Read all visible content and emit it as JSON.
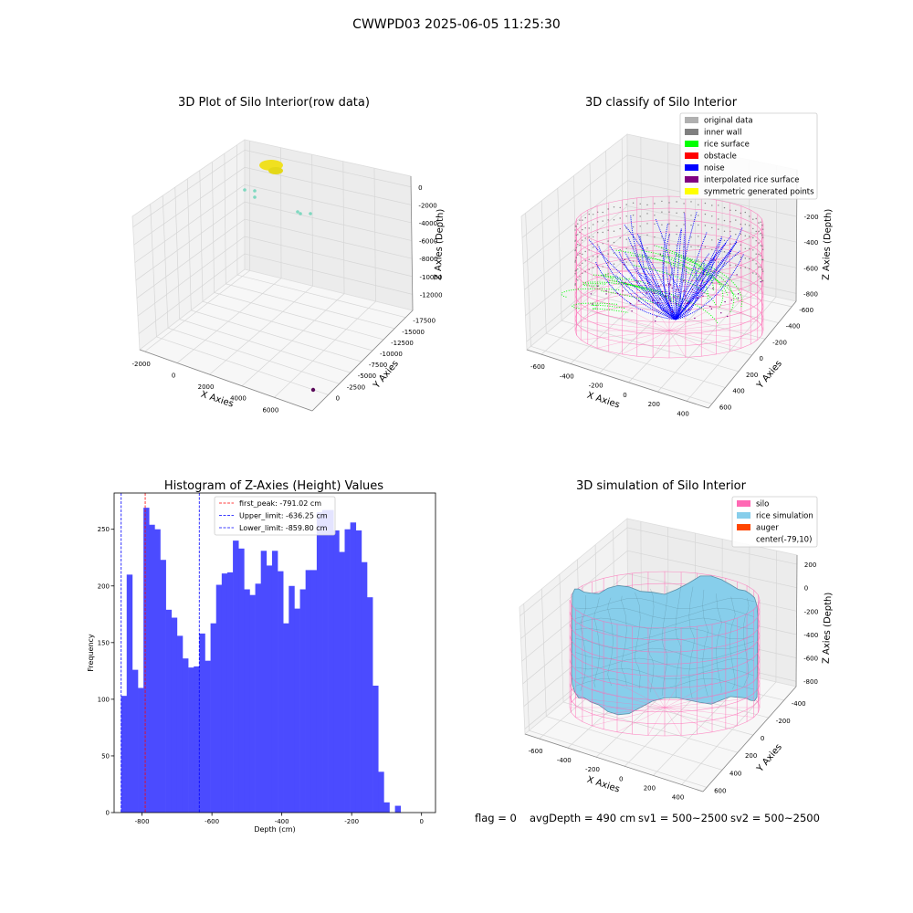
{
  "figure_title": "CWWPD03 2025-06-05 11:25:30",
  "footer": {
    "flag": "flag = 0",
    "avg_depth": "avgDepth = 490 cm",
    "sv1": "sv1 = 500~2500",
    "sv2": "sv2 = 500~2500"
  },
  "colors": {
    "raw_points": "#7fd8c0",
    "raw_cluster": "#f0e020",
    "raw_outlier": "#5a0a5a",
    "hist_bar": "#4b4bff",
    "peak_line": "#ff0000",
    "limit_line": "#0000ff",
    "silo": "#ff69b4",
    "rice": "#87ceeb",
    "auger": "#ff4500"
  },
  "chart_data": [
    {
      "type": "scatter",
      "title": "3D Plot of Silo Interior(row data)",
      "xlabel": "X Axies",
      "ylabel": "Y Axies",
      "zlabel": "Z Axies (Depth)",
      "x_ticks": [
        "-2000",
        "0",
        "2000",
        "4000",
        "6000"
      ],
      "y_ticks": [
        "0",
        "-2500",
        "-5000",
        "-7500",
        "-10000",
        "-12500",
        "-15000",
        "-17500"
      ],
      "z_ticks": [
        "0",
        "-2000",
        "-4000",
        "-6000",
        "-8000",
        "-10000",
        "-12000"
      ]
    },
    {
      "type": "scatter",
      "title": "3D classify of Silo Interior",
      "xlabel": "X Axies",
      "ylabel": "Y Axies",
      "zlabel": "Z Axies (Depth)",
      "x_ticks": [
        "-600",
        "-400",
        "-200",
        "0",
        "200",
        "400"
      ],
      "y_ticks": [
        "600",
        "400",
        "200",
        "0",
        "-200",
        "-400",
        "-600"
      ],
      "z_ticks": [
        "0",
        "-200",
        "-400",
        "-600",
        "-800"
      ],
      "legend": [
        {
          "label": "original data",
          "color": "#b0b0b0"
        },
        {
          "label": "inner wall",
          "color": "#808080"
        },
        {
          "label": "rice surface",
          "color": "#00ff00"
        },
        {
          "label": "obstacle",
          "color": "#ff0000"
        },
        {
          "label": "noise",
          "color": "#0000ff"
        },
        {
          "label": "interpolated rice surface",
          "color": "#800080"
        },
        {
          "label": "symmetric generated points",
          "color": "#ffff00"
        }
      ]
    },
    {
      "type": "bar",
      "title": "Histogram of Z-Axies (Height) Values",
      "xlabel": "Depth (cm)",
      "ylabel": "Frequency",
      "xlim": [
        -880,
        40
      ],
      "ylim": [
        0,
        282
      ],
      "x_ticks": [
        -800,
        -600,
        -400,
        -200,
        0
      ],
      "y_ticks": [
        0,
        50,
        100,
        150,
        200,
        250
      ],
      "bin_start": -860,
      "bin_width": 16,
      "values": [
        103,
        210,
        126,
        110,
        269,
        254,
        250,
        223,
        179,
        172,
        156,
        136,
        128,
        129,
        158,
        134,
        167,
        201,
        211,
        212,
        240,
        233,
        197,
        192,
        202,
        231,
        218,
        231,
        213,
        167,
        200,
        180,
        197,
        214,
        214,
        265,
        267,
        267,
        249,
        230,
        250,
        256,
        249,
        221,
        190,
        112,
        36,
        9,
        0,
        6
      ],
      "lines": [
        {
          "label": "first_peak: -791.02 cm",
          "x": -791.02,
          "style": "peak"
        },
        {
          "label": "Upper_limit: -636.25 cm",
          "x": -636.25,
          "style": "limit"
        },
        {
          "label": "Lower_limit: -859.80 cm",
          "x": -859.8,
          "style": "limit"
        }
      ]
    },
    {
      "type": "area",
      "title": "3D simulation of Silo Interior",
      "xlabel": "X Axies",
      "ylabel": "Y Axies",
      "zlabel": "Z Axies (Depth)",
      "x_ticks": [
        "-600",
        "-400",
        "-200",
        "0",
        "200",
        "400"
      ],
      "y_ticks": [
        "600",
        "400",
        "200",
        "0",
        "-200",
        "-400"
      ],
      "z_ticks": [
        "200",
        "0",
        "-200",
        "-400",
        "-600",
        "-800"
      ],
      "legend": [
        {
          "label": "silo",
          "color": "#ff69b4"
        },
        {
          "label": "rice simulation",
          "color": "#87ceeb"
        },
        {
          "label": "auger",
          "color": "#ff4500"
        },
        {
          "label": "center(-79,10)",
          "color": "none"
        }
      ]
    }
  ]
}
